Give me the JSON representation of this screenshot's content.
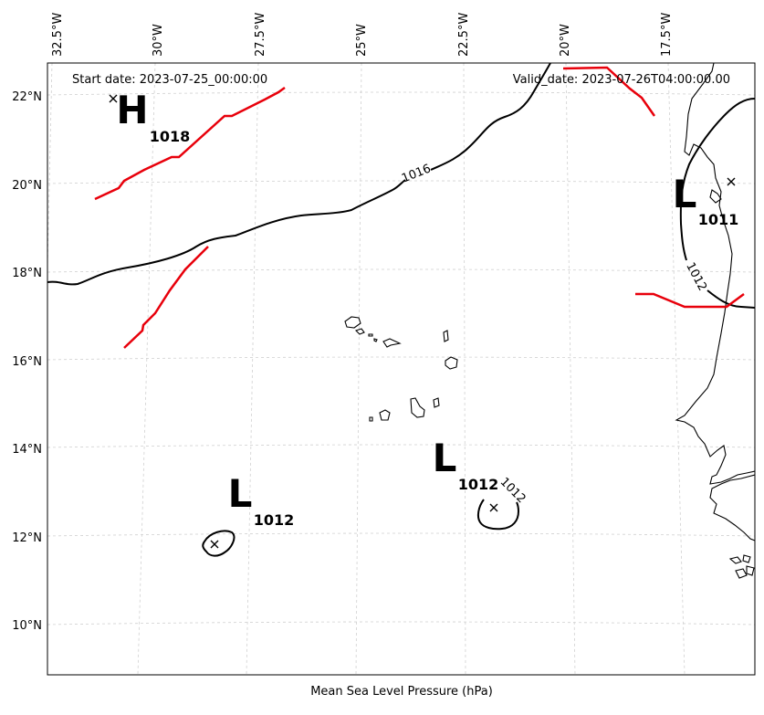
{
  "header": {
    "start_date": "Start date: 2023-07-25_00:00:00",
    "valid_date": "Valid_date: 2023-07-26T04:00:00.00"
  },
  "footer": {
    "xlabel": "Mean Sea Level Pressure (hPa)"
  },
  "axes": {
    "lon_ticks": [
      "32.5°W",
      "30°W",
      "27.5°W",
      "25°W",
      "22.5°W",
      "20°W",
      "17.5°W"
    ],
    "lat_ticks": [
      "22°N",
      "20°N",
      "18°N",
      "16°N",
      "14°N",
      "12°N",
      "10°N"
    ]
  },
  "pressure_systems": [
    {
      "type": "H",
      "value": "1018"
    },
    {
      "type": "L",
      "value": "1011"
    },
    {
      "type": "L",
      "value": "1012"
    },
    {
      "type": "L",
      "value": "1012"
    }
  ],
  "contour_labels": [
    "1016",
    "1012",
    "1012"
  ],
  "colors": {
    "isobar": "#000000",
    "front": "#e8000b",
    "grid": "#d0d0d0"
  }
}
